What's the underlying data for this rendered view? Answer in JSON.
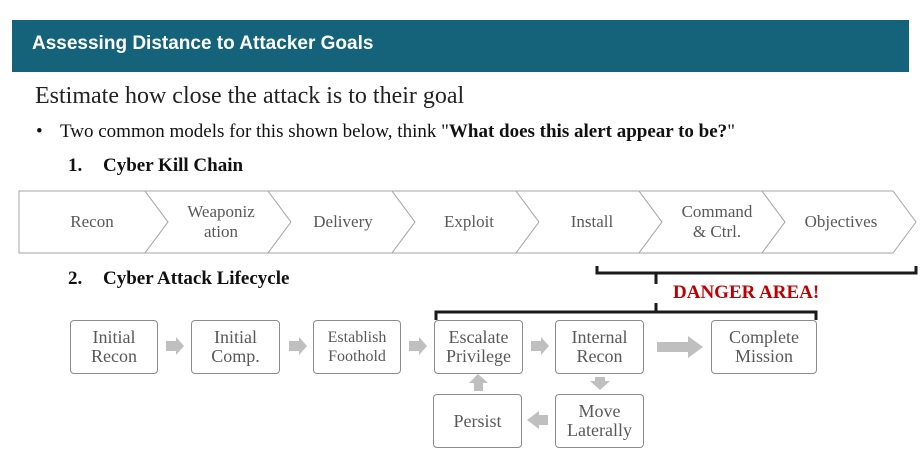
{
  "header": {
    "title": "Assessing Distance to Attacker Goals"
  },
  "subtitle": "Estimate how close the attack is to their goal",
  "bullet": {
    "prefix": "Two common models for this shown below, think \"",
    "emphasis": "What does this alert appear to be?",
    "suffix": "\""
  },
  "kill_chain": {
    "number": "1.",
    "title": "Cyber Kill Chain",
    "stages": [
      {
        "line1": "Recon",
        "line2": ""
      },
      {
        "line1": "Weaponiz",
        "line2": "ation"
      },
      {
        "line1": "Delivery",
        "line2": ""
      },
      {
        "line1": "Exploit",
        "line2": ""
      },
      {
        "line1": "Install",
        "line2": ""
      },
      {
        "line1": "Command",
        "line2": "& Ctrl."
      },
      {
        "line1": "Objectives",
        "line2": ""
      }
    ]
  },
  "lifecycle": {
    "number": "2.",
    "title": "Cyber Attack Lifecycle",
    "danger_label": "DANGER AREA!",
    "steps": {
      "initial_recon": {
        "line1": "Initial",
        "line2": "Recon"
      },
      "initial_comp": {
        "line1": "Initial",
        "line2": "Comp."
      },
      "establish_foothold": {
        "line1": "Establish",
        "line2": "Foothold"
      },
      "escalate_privilege": {
        "line1": "Escalate",
        "line2": "Privilege"
      },
      "internal_recon": {
        "line1": "Internal",
        "line2": "Recon"
      },
      "complete_mission": {
        "line1": "Complete",
        "line2": "Mission"
      },
      "move_laterally": {
        "line1": "Move",
        "line2": "Laterally"
      },
      "persist": {
        "line1": "Persist",
        "line2": ""
      }
    }
  },
  "colors": {
    "banner": "#14637a",
    "danger": "#c00000",
    "box_border": "#8c8c8c",
    "arrow": "#bfbfbf",
    "stage_text": "#595959"
  }
}
